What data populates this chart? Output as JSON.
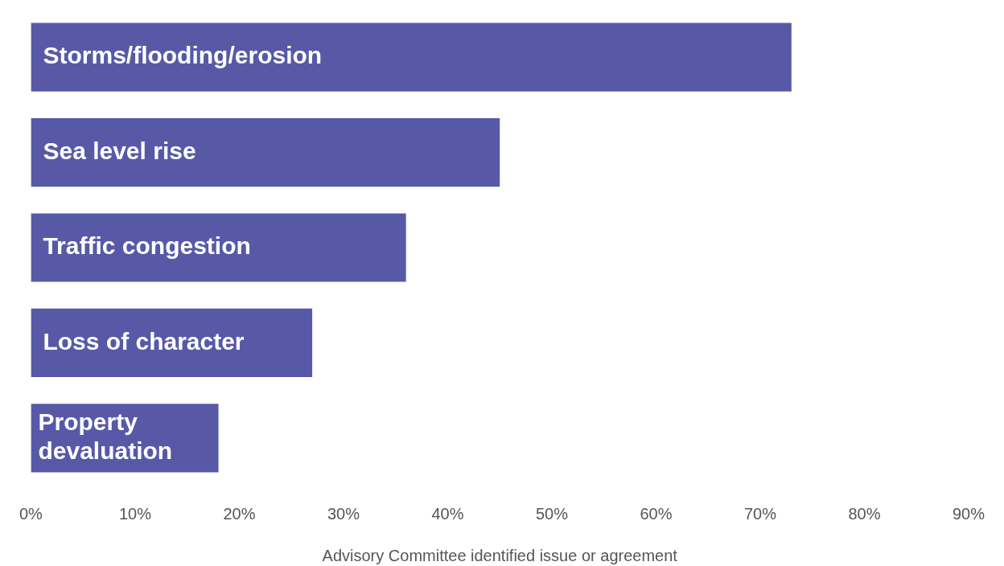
{
  "chart_data": {
    "type": "bar",
    "orientation": "horizontal",
    "xlabel": "Advisory Committee identified issue or agreement",
    "categories": [
      "Storms/flooding/erosion",
      "Sea level rise",
      "Traffic congestion",
      "Loss of character",
      "Property devaluation"
    ],
    "values": [
      73,
      45,
      36,
      27,
      18
    ],
    "color": "#5759a7",
    "xlim": [
      0,
      90
    ],
    "xticks": [
      {
        "value": 0,
        "label": "0%"
      },
      {
        "value": 10,
        "label": "10%"
      },
      {
        "value": 20,
        "label": "20%"
      },
      {
        "value": 30,
        "label": "30%"
      },
      {
        "value": 40,
        "label": "40%"
      },
      {
        "value": 50,
        "label": "50%"
      },
      {
        "value": 60,
        "label": "60%"
      },
      {
        "value": 70,
        "label": "70%"
      },
      {
        "value": 80,
        "label": "80%"
      },
      {
        "value": 90,
        "label": "90%"
      }
    ],
    "grid": false,
    "legend": false
  }
}
